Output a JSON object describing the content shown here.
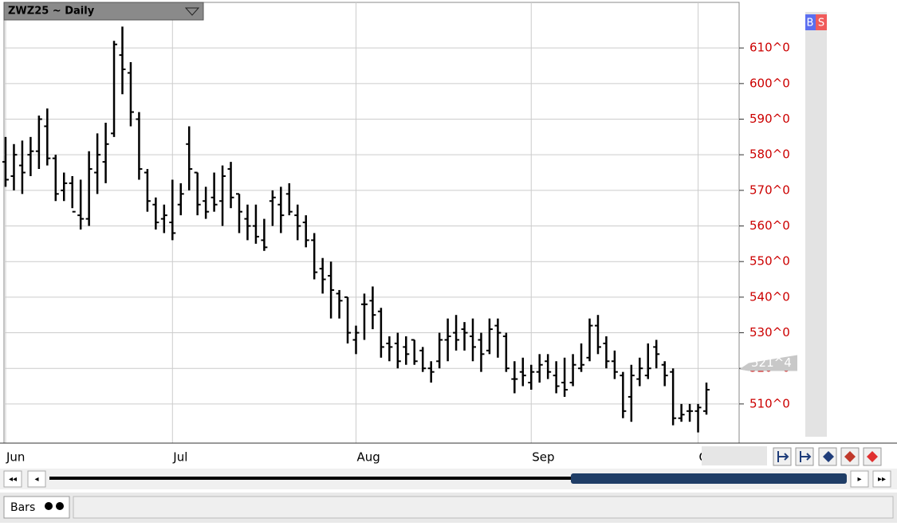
{
  "chart_data": {
    "type": "ohlc",
    "title": "ZWZ25 ~ Daily",
    "categories": [
      "Jun",
      null,
      null,
      null,
      null,
      null,
      null,
      null,
      null,
      null,
      null,
      null,
      null,
      null,
      null,
      null,
      null,
      null,
      null,
      null,
      "Jul",
      null,
      null,
      null,
      null,
      null,
      null,
      null,
      null,
      null,
      null,
      null,
      null,
      null,
      null,
      null,
      null,
      null,
      null,
      null,
      null,
      null,
      "Aug",
      null,
      null,
      null,
      null,
      null,
      null,
      null,
      null,
      null,
      null,
      null,
      null,
      null,
      null,
      null,
      null,
      null,
      null,
      null,
      null,
      "Sep",
      null,
      null,
      null,
      null,
      null,
      null,
      null,
      null,
      null,
      null,
      null,
      null,
      null,
      null,
      null,
      null,
      null,
      null,
      null,
      "Oct",
      null
    ],
    "open": [
      578,
      574,
      577,
      580,
      581,
      588,
      579,
      570,
      572,
      563,
      562,
      575,
      578,
      586,
      608,
      603,
      590,
      575,
      566,
      562,
      561,
      566,
      583,
      575,
      567,
      568,
      567,
      576,
      569,
      562,
      560,
      556,
      567,
      566,
      569,
      563,
      561,
      556,
      548,
      546,
      541,
      540,
      528,
      538,
      539,
      536,
      527,
      527,
      526,
      528,
      525,
      520,
      522,
      528,
      530,
      531,
      529,
      528,
      525,
      532,
      529,
      517,
      519,
      516,
      519,
      522,
      518,
      516,
      516,
      520,
      523,
      532,
      527,
      522,
      518,
      512,
      517,
      518,
      526,
      521,
      519,
      506,
      508,
      508,
      508
    ],
    "high": [
      585,
      583,
      584,
      585,
      591,
      593,
      580,
      575,
      574,
      573,
      581,
      586,
      589,
      612,
      616,
      606,
      592,
      576,
      568,
      566,
      573,
      572,
      588,
      575,
      571,
      575,
      577,
      578,
      569,
      566,
      566,
      562,
      570,
      571,
      572,
      566,
      563,
      558,
      551,
      550,
      542,
      540,
      532,
      541,
      543,
      537,
      529,
      530,
      529,
      528,
      526,
      522,
      530,
      534,
      535,
      533,
      534,
      530,
      534,
      534,
      530,
      522,
      523,
      521,
      524,
      524,
      522,
      523,
      524,
      527,
      534,
      535,
      529,
      525,
      519,
      521,
      523,
      527,
      528,
      522,
      520,
      510,
      510,
      510,
      516
    ],
    "low": [
      571,
      570,
      569,
      574,
      576,
      577,
      567,
      567,
      565,
      559,
      560,
      569,
      572,
      585,
      597,
      588,
      573,
      564,
      559,
      558,
      556,
      563,
      570,
      563,
      562,
      564,
      560,
      565,
      558,
      556,
      555,
      553,
      560,
      558,
      563,
      556,
      554,
      545,
      541,
      534,
      534,
      527,
      524,
      528,
      531,
      523,
      522,
      520,
      521,
      521,
      519,
      516,
      520,
      522,
      525,
      525,
      522,
      519,
      524,
      523,
      519,
      513,
      515,
      514,
      516,
      517,
      513,
      512,
      515,
      519,
      522,
      524,
      520,
      517,
      506,
      505,
      515,
      517,
      520,
      515,
      504,
      505,
      505,
      502,
      507
    ],
    "close": [
      573,
      580,
      575,
      581,
      590,
      579,
      569,
      572,
      564,
      562,
      576,
      580,
      583,
      611,
      604,
      592,
      576,
      567,
      561,
      563,
      558,
      569,
      576,
      566,
      564,
      566,
      574,
      568,
      564,
      560,
      557,
      554,
      568,
      563,
      564,
      560,
      556,
      547,
      545,
      542,
      539,
      530,
      530,
      538,
      535,
      526,
      526,
      522,
      524,
      522,
      520,
      519,
      528,
      529,
      528,
      530,
      526,
      524,
      531,
      530,
      520,
      517,
      518,
      519,
      521,
      519,
      515,
      514,
      521,
      521,
      532,
      526,
      522,
      519,
      508,
      518,
      520,
      520,
      524,
      518,
      506,
      507,
      508,
      509,
      514
    ],
    "color": "#000000",
    "ylim": [
      499,
      622.8
    ],
    "yticks": [
      {
        "value": 510,
        "label": "510^0"
      },
      {
        "value": 520,
        "label": "520^0"
      },
      {
        "value": 530,
        "label": "530^0"
      },
      {
        "value": 540,
        "label": "540^0"
      },
      {
        "value": 550,
        "label": "550^0"
      },
      {
        "value": 560,
        "label": "560^0"
      },
      {
        "value": 570,
        "label": "570^0"
      },
      {
        "value": 580,
        "label": "580^0"
      },
      {
        "value": 590,
        "label": "590^0"
      },
      {
        "value": 600,
        "label": "600^0"
      },
      {
        "value": 610,
        "label": "610^0"
      }
    ],
    "last_price": {
      "value": 521.5,
      "label": "521^4"
    },
    "grid": true
  },
  "ui": {
    "buttons": [
      "B",
      "S"
    ],
    "tab": "Bars"
  }
}
